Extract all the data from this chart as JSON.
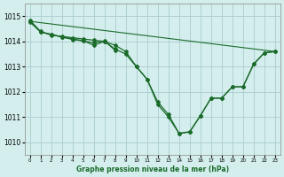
{
  "title": "Graphe pression niveau de la mer (hPa)",
  "bg_color": "#d4eeee",
  "grid_color": "#aacccc",
  "line_color": "#1a6b2a",
  "xlim": [
    -0.5,
    23.5
  ],
  "ylim": [
    1009.5,
    1015.5
  ],
  "yticks": [
    1010,
    1011,
    1012,
    1013,
    1014,
    1015
  ],
  "xticks": [
    0,
    1,
    2,
    3,
    4,
    5,
    6,
    7,
    8,
    9,
    10,
    11,
    12,
    13,
    14,
    15,
    16,
    17,
    18,
    19,
    20,
    21,
    22,
    23
  ],
  "lines": [
    {
      "x": [
        0,
        23
      ],
      "y": [
        1014.8,
        1013.6
      ],
      "markers": false
    },
    {
      "x": [
        0,
        1,
        2,
        3,
        4,
        5,
        6,
        7,
        8,
        9,
        10,
        11,
        12,
        13,
        14,
        15,
        16,
        17,
        18,
        19,
        20,
        21,
        22,
        23
      ],
      "y": [
        1014.85,
        1014.4,
        1014.25,
        1014.2,
        1014.15,
        1014.1,
        1014.05,
        1014.0,
        1013.85,
        1013.6,
        1013.0,
        1012.5,
        1011.6,
        1011.1,
        1010.35,
        1010.4,
        1011.05,
        1011.75,
        1011.75,
        1012.2,
        1012.2,
        1013.1,
        1013.55,
        1013.6
      ],
      "markers": true
    },
    {
      "x": [
        0,
        1,
        2,
        3,
        4,
        5,
        6,
        7,
        8,
        9,
        10,
        11,
        12,
        13,
        14,
        15,
        16,
        17,
        18,
        19,
        20,
        21,
        22,
        23
      ],
      "y": [
        1014.8,
        1014.38,
        1014.28,
        1014.18,
        1014.1,
        1014.03,
        1013.85,
        1014.0,
        1013.7,
        1013.5,
        1013.0,
        1012.5,
        1011.5,
        1011.0,
        1010.35,
        1010.42,
        1011.05,
        1011.75,
        1011.75,
        1012.2,
        1012.2,
        1013.1,
        1013.55,
        1013.6
      ],
      "markers": true
    },
    {
      "x": [
        0,
        1,
        2,
        3,
        4,
        5,
        6,
        7,
        8
      ],
      "y": [
        1014.78,
        1014.38,
        1014.28,
        1014.18,
        1014.08,
        1014.02,
        1013.95,
        1014.02,
        1013.65
      ],
      "markers": true
    }
  ]
}
